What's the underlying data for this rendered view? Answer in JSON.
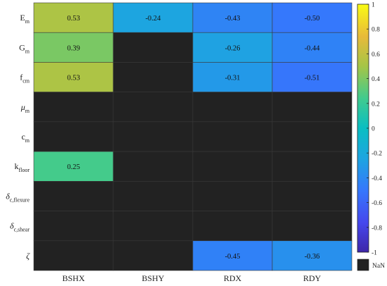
{
  "chart_data": {
    "type": "heatmap",
    "columns": [
      "BSHX",
      "BSHY",
      "RDX",
      "RDY"
    ],
    "rows": [
      {
        "base": "E",
        "sub": "m",
        "greek": false
      },
      {
        "base": "G",
        "sub": "m",
        "greek": false
      },
      {
        "base": "f",
        "sub": "cm",
        "greek": false
      },
      {
        "base": "μ",
        "sub": "m",
        "greek": true
      },
      {
        "base": "c",
        "sub": "m",
        "greek": false
      },
      {
        "base": "k",
        "sub": "floor",
        "greek": false
      },
      {
        "base": "δ",
        "sub": "c,flexure",
        "greek": true
      },
      {
        "base": "δ",
        "sub": "c,shear",
        "greek": true
      },
      {
        "base": "ζ",
        "sub": "",
        "greek": true
      }
    ],
    "values": [
      [
        0.53,
        -0.24,
        -0.43,
        -0.5
      ],
      [
        0.39,
        null,
        -0.26,
        -0.44
      ],
      [
        0.53,
        null,
        -0.31,
        -0.51
      ],
      [
        null,
        null,
        null,
        null
      ],
      [
        null,
        null,
        null,
        null
      ],
      [
        0.25,
        null,
        null,
        null
      ],
      [
        null,
        null,
        null,
        null
      ],
      [
        null,
        null,
        null,
        null
      ],
      [
        null,
        null,
        -0.45,
        -0.36
      ]
    ],
    "labels": [
      [
        "0.53",
        "-0.24",
        "-0.43",
        "-0.50"
      ],
      [
        "0.39",
        "",
        "-0.26",
        "-0.44"
      ],
      [
        "0.53",
        "",
        "-0.31",
        "-0.51"
      ],
      [
        "",
        "",
        "",
        ""
      ],
      [
        "",
        "",
        "",
        ""
      ],
      [
        "0.25",
        "",
        "",
        ""
      ],
      [
        "",
        "",
        "",
        ""
      ],
      [
        "",
        "",
        "",
        ""
      ],
      [
        "",
        "",
        "-0.45",
        "-0.36"
      ]
    ],
    "colorbar": {
      "min": -1,
      "max": 1,
      "ticks": [
        1,
        0.8,
        0.6,
        0.4,
        0.2,
        0,
        -0.2,
        -0.4,
        -0.6,
        -0.8,
        -1
      ],
      "tick_labels": [
        "1",
        "0.8",
        "0.6",
        "0.4",
        "0.2",
        "0",
        "-0.2",
        "-0.4",
        "-0.6",
        "-0.8",
        "-1"
      ],
      "colormap": "parula"
    },
    "nan_color": "#222222",
    "nan_label": "NaN",
    "title": "",
    "xlabel": "",
    "ylabel": ""
  }
}
